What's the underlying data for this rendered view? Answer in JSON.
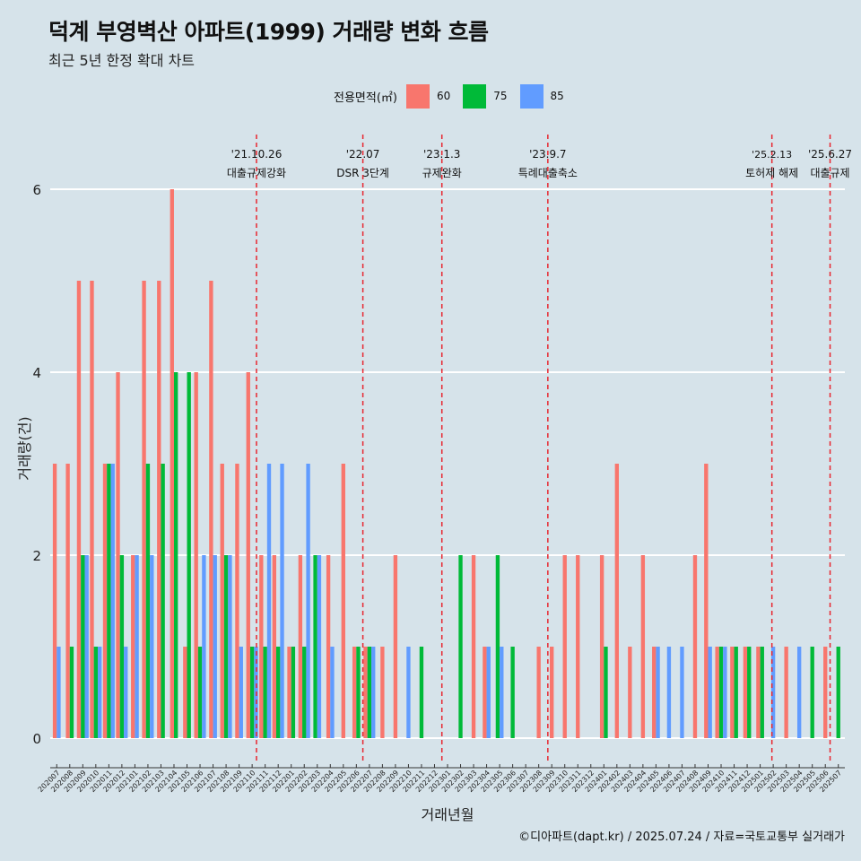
{
  "header": {
    "title": "덕계 부영벽산 아파트(1999) 거래량 변화 흐름",
    "subtitle": "최근 5년 한정 확대 차트"
  },
  "legend": {
    "title": "전용면적(㎡)",
    "items": [
      {
        "label": "60",
        "color": "#f8766d"
      },
      {
        "label": "75",
        "color": "#00ba38"
      },
      {
        "label": "85",
        "color": "#619cff"
      }
    ]
  },
  "caption": "©디아파트(dapt.kr) / 2025.07.24 / 자료=국토교통부 실거래가",
  "chart_data": {
    "type": "bar",
    "xlabel": "거래년월",
    "ylabel": "거래량(건)",
    "ylim": [
      0,
      6
    ],
    "yticks": [
      0,
      2,
      4,
      6
    ],
    "grid": true,
    "legend_position": "top",
    "categories": [
      "202007",
      "202008",
      "202009",
      "202010",
      "202011",
      "202012",
      "202101",
      "202102",
      "202103",
      "202104",
      "202105",
      "202106",
      "202107",
      "202108",
      "202109",
      "202110",
      "202111",
      "202112",
      "202201",
      "202202",
      "202203",
      "202204",
      "202205",
      "202206",
      "202207",
      "202208",
      "202209",
      "202210",
      "202211",
      "202212",
      "202301",
      "202302",
      "202303",
      "202304",
      "202305",
      "202306",
      "202307",
      "202308",
      "202309",
      "202310",
      "202311",
      "202312",
      "202401",
      "202402",
      "202403",
      "202404",
      "202405",
      "202406",
      "202407",
      "202408",
      "202409",
      "202410",
      "202411",
      "202412",
      "202501",
      "202502",
      "202503",
      "202504",
      "202505",
      "202506",
      "202507"
    ],
    "series": [
      {
        "name": "60",
        "color": "#f8766d",
        "values": [
          3,
          3,
          5,
          5,
          3,
          4,
          2,
          5,
          5,
          6,
          1,
          4,
          5,
          3,
          3,
          4,
          2,
          2,
          1,
          2,
          0,
          2,
          3,
          1,
          1,
          1,
          2,
          0,
          0,
          0,
          0,
          0,
          2,
          1,
          0,
          0,
          0,
          1,
          1,
          2,
          2,
          0,
          2,
          3,
          1,
          2,
          1,
          0,
          0,
          2,
          3,
          1,
          1,
          1,
          1,
          0,
          1,
          0,
          0,
          1,
          0
        ]
      },
      {
        "name": "75",
        "color": "#00ba38",
        "values": [
          0,
          1,
          2,
          1,
          3,
          2,
          0,
          3,
          3,
          4,
          4,
          1,
          0,
          2,
          0,
          1,
          1,
          1,
          1,
          1,
          2,
          0,
          0,
          1,
          1,
          0,
          0,
          0,
          1,
          0,
          0,
          2,
          0,
          0,
          2,
          1,
          0,
          0,
          0,
          0,
          0,
          0,
          1,
          0,
          0,
          0,
          0,
          0,
          0,
          0,
          0,
          1,
          1,
          1,
          1,
          0,
          0,
          0,
          1,
          0,
          1
        ]
      },
      {
        "name": "85",
        "color": "#619cff",
        "values": [
          1,
          0,
          2,
          1,
          3,
          1,
          2,
          2,
          0,
          0,
          0,
          2,
          2,
          2,
          1,
          1,
          3,
          3,
          0,
          3,
          2,
          1,
          0,
          0,
          1,
          0,
          0,
          1,
          0,
          0,
          0,
          0,
          0,
          1,
          1,
          0,
          0,
          0,
          0,
          0,
          0,
          0,
          0,
          0,
          0,
          0,
          1,
          1,
          1,
          0,
          1,
          1,
          0,
          0,
          0,
          1,
          0,
          1,
          0,
          0,
          0
        ]
      }
    ],
    "events": [
      {
        "date": "'21.10.26",
        "label": "대출규제강화",
        "month": "202110",
        "day": 26
      },
      {
        "date": "'22.07",
        "label": "DSR 3단계",
        "month": "202207",
        "day": 1
      },
      {
        "date": "'23.1.3",
        "label": "규제완화",
        "month": "202301",
        "day": 3
      },
      {
        "date": "'23.9.7",
        "label": "특례대출축소",
        "month": "202309",
        "day": 7
      },
      {
        "date": "'25.2.13",
        "label": "토허제 해제",
        "month": "202502",
        "day": 13
      },
      {
        "date": "'25.6.27",
        "label": "대출규제",
        "month": "202506",
        "day": 27
      }
    ]
  }
}
